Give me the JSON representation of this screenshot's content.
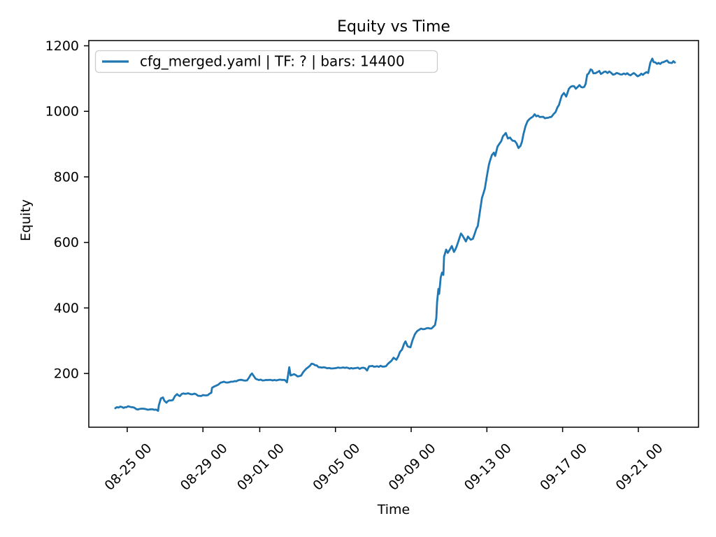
{
  "chart_data": {
    "type": "line",
    "title": "Equity vs Time",
    "xlabel": "Time",
    "ylabel": "Equity",
    "legend": {
      "label": "cfg_merged.yaml | TF: ? | bars: 14400",
      "position": "upper-left"
    },
    "line_color": "#1f77b4",
    "background_color": "#ffffff",
    "grid": false,
    "x_axis": {
      "unit": "days relative to 08-25 00:00",
      "lim": [
        -2.03,
        30.18
      ],
      "ticks": [
        {
          "d": 0,
          "label": "08-25 00"
        },
        {
          "d": 4,
          "label": "08-29 00"
        },
        {
          "d": 7,
          "label": "09-01 00"
        },
        {
          "d": 11,
          "label": "09-05 00"
        },
        {
          "d": 15,
          "label": "09-09 00"
        },
        {
          "d": 19,
          "label": "09-13 00"
        },
        {
          "d": 23,
          "label": "09-17 00"
        },
        {
          "d": 27,
          "label": "09-21 00"
        }
      ]
    },
    "y_axis": {
      "lim": [
        36,
        1216
      ],
      "ticks": [
        200,
        400,
        600,
        800,
        1000,
        1200
      ]
    },
    "series": [
      {
        "name": "cfg_merged.yaml | TF: ? | bars: 14400",
        "points": [
          [
            -0.63,
            94
          ],
          [
            -0.37,
            99
          ],
          [
            -0.19,
            95
          ],
          [
            0.04,
            100
          ],
          [
            0.3,
            97
          ],
          [
            0.48,
            91
          ],
          [
            1.0,
            91
          ],
          [
            1.52,
            90
          ],
          [
            1.63,
            86
          ],
          [
            1.67,
            103
          ],
          [
            1.78,
            124
          ],
          [
            1.89,
            127
          ],
          [
            1.96,
            117
          ],
          [
            2.07,
            111
          ],
          [
            2.22,
            118
          ],
          [
            2.41,
            119
          ],
          [
            2.52,
            131
          ],
          [
            2.63,
            137
          ],
          [
            2.78,
            131
          ],
          [
            2.89,
            138
          ],
          [
            3.3,
            138
          ],
          [
            3.63,
            137
          ],
          [
            3.74,
            132
          ],
          [
            4.26,
            134
          ],
          [
            4.44,
            141
          ],
          [
            4.48,
            156
          ],
          [
            4.63,
            161
          ],
          [
            4.81,
            166
          ],
          [
            4.93,
            172
          ],
          [
            5.11,
            175
          ],
          [
            5.37,
            173
          ],
          [
            5.59,
            175
          ],
          [
            5.85,
            179
          ],
          [
            6.33,
            179
          ],
          [
            6.52,
            196
          ],
          [
            6.59,
            200
          ],
          [
            6.7,
            191
          ],
          [
            6.78,
            184
          ],
          [
            6.96,
            180
          ],
          [
            7.6,
            180
          ],
          [
            8.33,
            180
          ],
          [
            8.44,
            173
          ],
          [
            8.56,
            219
          ],
          [
            8.63,
            194
          ],
          [
            8.81,
            198
          ],
          [
            9.0,
            191
          ],
          [
            9.19,
            194
          ],
          [
            9.37,
            209
          ],
          [
            9.56,
            219
          ],
          [
            9.74,
            230
          ],
          [
            9.93,
            225
          ],
          [
            10.19,
            219
          ],
          [
            10.67,
            217
          ],
          [
            10.96,
            216
          ],
          [
            11.5,
            217
          ],
          [
            12.0,
            216
          ],
          [
            12.56,
            216
          ],
          [
            12.67,
            209
          ],
          [
            12.78,
            222
          ],
          [
            13.2,
            222
          ],
          [
            13.67,
            222
          ],
          [
            13.78,
            230
          ],
          [
            13.96,
            239
          ],
          [
            14.07,
            248
          ],
          [
            14.22,
            242
          ],
          [
            14.41,
            266
          ],
          [
            14.52,
            273
          ],
          [
            14.63,
            291
          ],
          [
            14.7,
            298
          ],
          [
            14.81,
            283
          ],
          [
            14.96,
            280
          ],
          [
            15.07,
            301
          ],
          [
            15.19,
            319
          ],
          [
            15.33,
            330
          ],
          [
            15.52,
            337
          ],
          [
            15.81,
            338
          ],
          [
            16.07,
            337
          ],
          [
            16.19,
            344
          ],
          [
            16.26,
            348
          ],
          [
            16.33,
            369
          ],
          [
            16.37,
            418
          ],
          [
            16.44,
            458
          ],
          [
            16.48,
            443
          ],
          [
            16.56,
            493
          ],
          [
            16.63,
            508
          ],
          [
            16.7,
            501
          ],
          [
            16.74,
            557
          ],
          [
            16.85,
            578
          ],
          [
            16.93,
            568
          ],
          [
            17.04,
            578
          ],
          [
            17.15,
            589
          ],
          [
            17.26,
            571
          ],
          [
            17.41,
            589
          ],
          [
            17.52,
            608
          ],
          [
            17.63,
            627
          ],
          [
            17.78,
            614
          ],
          [
            17.89,
            603
          ],
          [
            18.0,
            618
          ],
          [
            18.15,
            608
          ],
          [
            18.26,
            611
          ],
          [
            18.37,
            629
          ],
          [
            18.52,
            650
          ],
          [
            18.63,
            693
          ],
          [
            18.74,
            736
          ],
          [
            18.89,
            764
          ],
          [
            19.0,
            802
          ],
          [
            19.11,
            838
          ],
          [
            19.26,
            866
          ],
          [
            19.37,
            874
          ],
          [
            19.44,
            864
          ],
          [
            19.56,
            892
          ],
          [
            19.67,
            902
          ],
          [
            19.85,
            924
          ],
          [
            20.0,
            934
          ],
          [
            20.11,
            917
          ],
          [
            20.22,
            920
          ],
          [
            20.37,
            910
          ],
          [
            20.56,
            903
          ],
          [
            20.67,
            888
          ],
          [
            20.78,
            895
          ],
          [
            20.93,
            930
          ],
          [
            21.04,
            955
          ],
          [
            21.15,
            970
          ],
          [
            21.33,
            980
          ],
          [
            21.52,
            991
          ],
          [
            21.7,
            987
          ],
          [
            21.89,
            983
          ],
          [
            22.15,
            980
          ],
          [
            22.41,
            983
          ],
          [
            22.63,
            998
          ],
          [
            22.81,
            1020
          ],
          [
            22.96,
            1048
          ],
          [
            23.07,
            1056
          ],
          [
            23.19,
            1045
          ],
          [
            23.33,
            1069
          ],
          [
            23.52,
            1077
          ],
          [
            23.7,
            1069
          ],
          [
            23.89,
            1080
          ],
          [
            24.07,
            1073
          ],
          [
            24.22,
            1084
          ],
          [
            24.3,
            1112
          ],
          [
            24.44,
            1123
          ],
          [
            24.48,
            1128
          ],
          [
            24.63,
            1116
          ],
          [
            24.85,
            1120
          ],
          [
            25.37,
            1117
          ],
          [
            25.85,
            1117
          ],
          [
            26.33,
            1113
          ],
          [
            26.59,
            1110
          ],
          [
            26.85,
            1113
          ],
          [
            27.07,
            1110
          ],
          [
            27.33,
            1116
          ],
          [
            27.52,
            1117
          ],
          [
            27.63,
            1148
          ],
          [
            27.74,
            1161
          ],
          [
            27.81,
            1150
          ],
          [
            28.07,
            1148
          ],
          [
            28.33,
            1150
          ],
          [
            28.52,
            1155
          ],
          [
            28.7,
            1148
          ],
          [
            28.93,
            1149
          ]
        ]
      }
    ]
  }
}
